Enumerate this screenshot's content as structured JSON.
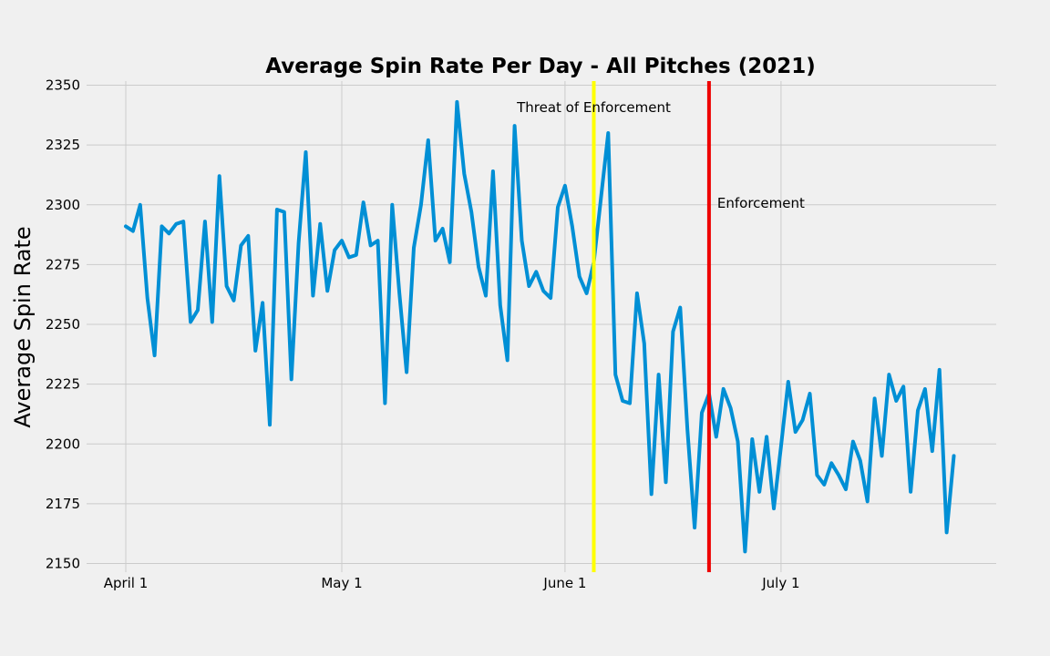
{
  "chart_data": {
    "type": "line",
    "title": "Average Spin Rate Per Day - All Pitches (2021)",
    "xlabel": "",
    "ylabel": "Average Spin Rate",
    "ylim": [
      2150,
      2350
    ],
    "yticks": [
      2150,
      2175,
      2200,
      2225,
      2250,
      2275,
      2300,
      2325,
      2350
    ],
    "xticks": [
      {
        "day": 0,
        "label": "April 1"
      },
      {
        "day": 30,
        "label": "May 1"
      },
      {
        "day": 61,
        "label": "June 1"
      },
      {
        "day": 91,
        "label": "July 1"
      }
    ],
    "xlim": [
      -5.5,
      121.5
    ],
    "grid": true,
    "series": [
      {
        "color": "#008fd5",
        "x": [
          0,
          1,
          2,
          3,
          4,
          5,
          6,
          7,
          8,
          9,
          10,
          11,
          12,
          13,
          14,
          15,
          16,
          17,
          18,
          19,
          20,
          21,
          22,
          23,
          24,
          25,
          26,
          27,
          28,
          29,
          30,
          31,
          32,
          33,
          34,
          35,
          36,
          37,
          38,
          39,
          40,
          41,
          42,
          43,
          44,
          45,
          46,
          47,
          48,
          49,
          50,
          51,
          52,
          53,
          54,
          55,
          56,
          57,
          58,
          59,
          60,
          61,
          62,
          63,
          64,
          65,
          66,
          67,
          68,
          69,
          70,
          71,
          72,
          73,
          74,
          75,
          76,
          77,
          78,
          79,
          80,
          81,
          82,
          83,
          84,
          85,
          86,
          87,
          88,
          89,
          90,
          91,
          92,
          93,
          94,
          95,
          96,
          97,
          98,
          99,
          100,
          101,
          102,
          103,
          104,
          105,
          106,
          107,
          108,
          109,
          110,
          111,
          112,
          113,
          114,
          115
        ],
        "values": [
          2291,
          2289,
          2300,
          2261,
          2237,
          2291,
          2288,
          2292,
          2293,
          2251,
          2256,
          2293,
          2251,
          2312,
          2266,
          2260,
          2283,
          2287,
          2239,
          2259,
          2208,
          2298,
          2297,
          2227,
          2284,
          2322,
          2262,
          2292,
          2264,
          2281,
          2285,
          2278,
          2279,
          2301,
          2283,
          2285,
          2217,
          2300,
          2263,
          2230,
          2282,
          2300,
          2327,
          2285,
          2290,
          2276,
          2343,
          2313,
          2297,
          2274,
          2262,
          2314,
          2258,
          2235,
          2333,
          2285,
          2266,
          2272,
          2264,
          2261,
          2299,
          2308,
          2291,
          2270,
          2263,
          2276,
          2303,
          2330,
          2229,
          2218,
          2217,
          2263,
          2242,
          2179,
          2229,
          2184,
          2247,
          2257,
          2206,
          2165,
          2213,
          2221,
          2203,
          2223,
          2215,
          2201,
          2155,
          2202,
          2180,
          2203,
          2173,
          2199,
          2226,
          2205,
          2210,
          2221,
          2187,
          2183,
          2192,
          2187,
          2181,
          2201,
          2193,
          2176,
          2219,
          2195,
          2229,
          2218,
          2224,
          2180,
          2214,
          2223,
          2197,
          2231,
          2163,
          2195
        ]
      }
    ],
    "annotations": [
      {
        "day": 65,
        "color": "#ffff00",
        "label": "Threat of Enforcement",
        "label_value": 2341
      },
      {
        "day": 81,
        "color": "#ee0000",
        "label": "Enforcement",
        "label_value": 2301
      }
    ]
  }
}
